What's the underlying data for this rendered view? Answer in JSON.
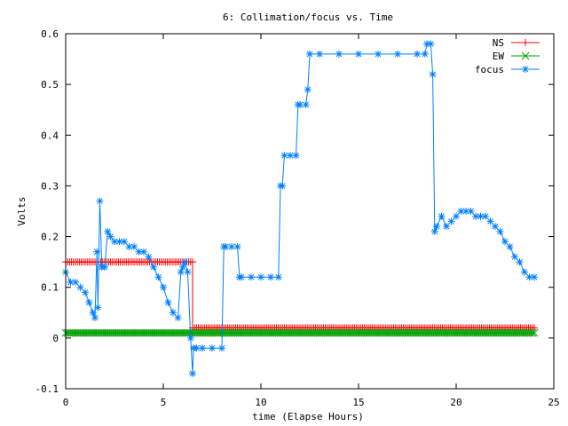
{
  "chart_data": {
    "type": "line",
    "title": "6: Collimation/focus vs. Time",
    "xlabel": "time (Elapse Hours)",
    "ylabel": "Volts",
    "xlim": [
      0,
      25
    ],
    "ylim": [
      -0.1,
      0.6
    ],
    "xticks": [
      0,
      5,
      10,
      15,
      20,
      25
    ],
    "xtick_labels": [
      "0",
      "5",
      "10",
      "15",
      "20",
      "25"
    ],
    "yticks": [
      -0.1,
      0,
      0.1,
      0.2,
      0.3,
      0.4,
      0.5,
      0.6
    ],
    "ytick_labels": [
      "-0.1",
      "0",
      "0.1",
      "0.2",
      "0.3",
      "0.4",
      "0.5",
      "0.6"
    ],
    "grid": false,
    "legend_position": "top-right",
    "series": [
      {
        "name": "NS",
        "color": "#ff0000",
        "marker": "plus",
        "steps": [
          [
            0,
            6.5,
            0.15
          ],
          [
            6.5,
            24,
            0.02
          ]
        ]
      },
      {
        "name": "EW",
        "color": "#00a000",
        "marker": "cross",
        "steps": [
          [
            0,
            24,
            0.01
          ]
        ]
      },
      {
        "name": "focus",
        "color": "#0080ff",
        "marker": "star",
        "x": [
          0,
          0.25,
          0.5,
          0.75,
          1.0,
          1.2,
          1.4,
          1.5,
          1.6,
          1.65,
          1.75,
          1.85,
          2.0,
          2.15,
          2.3,
          2.5,
          2.75,
          3.0,
          3.25,
          3.5,
          3.75,
          4.0,
          4.25,
          4.5,
          4.75,
          5.0,
          5.25,
          5.5,
          5.75,
          5.9,
          6.0,
          6.1,
          6.25,
          6.4,
          6.5,
          6.55,
          6.7,
          7.0,
          7.5,
          8.0,
          8.1,
          8.2,
          8.5,
          8.8,
          8.9,
          9.0,
          9.5,
          10.0,
          10.5,
          10.9,
          11.0,
          11.1,
          11.2,
          11.5,
          11.8,
          11.9,
          12.0,
          12.3,
          12.4,
          12.5,
          13,
          14,
          15,
          16,
          17,
          18,
          18.4,
          18.5,
          18.7,
          18.8,
          18.9,
          19.0,
          19.25,
          19.5,
          19.75,
          20.0,
          20.25,
          20.5,
          20.75,
          21.0,
          21.25,
          21.5,
          21.75,
          22.0,
          22.25,
          22.5,
          22.75,
          23.0,
          23.25,
          23.5,
          23.75,
          24.0
        ],
        "y": [
          0.13,
          0.11,
          0.11,
          0.1,
          0.09,
          0.07,
          0.05,
          0.04,
          0.17,
          0.06,
          0.27,
          0.14,
          0.14,
          0.21,
          0.2,
          0.19,
          0.19,
          0.19,
          0.18,
          0.18,
          0.17,
          0.17,
          0.16,
          0.14,
          0.12,
          0.1,
          0.07,
          0.05,
          0.04,
          0.13,
          0.14,
          0.15,
          0.13,
          0.0,
          -0.07,
          -0.02,
          -0.02,
          -0.02,
          -0.02,
          -0.02,
          0.18,
          0.18,
          0.18,
          0.18,
          0.12,
          0.12,
          0.12,
          0.12,
          0.12,
          0.12,
          0.3,
          0.3,
          0.36,
          0.36,
          0.36,
          0.46,
          0.46,
          0.46,
          0.49,
          0.56,
          0.56,
          0.56,
          0.56,
          0.56,
          0.56,
          0.56,
          0.56,
          0.58,
          0.58,
          0.52,
          0.21,
          0.22,
          0.24,
          0.22,
          0.23,
          0.24,
          0.25,
          0.25,
          0.25,
          0.24,
          0.24,
          0.24,
          0.23,
          0.22,
          0.21,
          0.19,
          0.18,
          0.16,
          0.15,
          0.13,
          0.12,
          0.12
        ]
      }
    ]
  }
}
